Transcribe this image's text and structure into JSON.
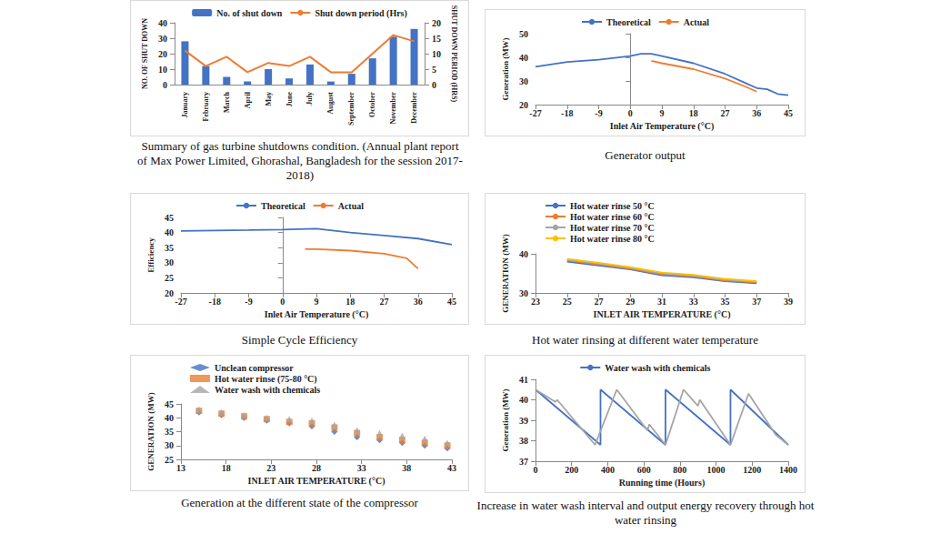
{
  "chart_data": [
    {
      "type": "bar",
      "caption": "Summary of gas turbine shutdowns condition. (Annual plant report of Max Power Limited, Ghorashal, Bangladesh for the session 2017-2018)",
      "categories": [
        "January",
        "February",
        "March",
        "April",
        "May",
        "June",
        "July",
        "August",
        "September",
        "October",
        "November",
        "December"
      ],
      "series": [
        {
          "name": "No. of shut down",
          "type": "bar",
          "color": "#4472c4",
          "values": [
            28,
            12,
            5,
            2,
            10,
            4,
            13,
            2,
            7,
            17,
            31,
            36
          ]
        },
        {
          "name": "Shut down period (Hrs)",
          "type": "line",
          "axis": "y2",
          "color": "#ed7d31",
          "values": [
            11,
            6,
            9,
            4,
            7,
            6,
            9,
            4,
            4,
            10,
            16,
            14
          ]
        }
      ],
      "y_label": "NO. OF SHUT DOWN",
      "y2_label": "SHUT DOWN PERIOD (HRS)",
      "ylim": [
        0,
        40
      ],
      "yticks": [
        0,
        10,
        20,
        30,
        40
      ],
      "y2lim": [
        0,
        20
      ],
      "y2ticks": [
        0,
        5,
        10,
        15,
        20
      ],
      "legend": "top",
      "grid": false
    },
    {
      "type": "line",
      "caption": "Generator output",
      "x_label": "Inlet Air Temperature (°C)",
      "y_label": "Generation (MW)",
      "series": [
        {
          "name": "Theoretical",
          "color": "#4472c4",
          "x": [
            -27,
            -18,
            -9,
            0,
            3,
            6,
            9,
            18,
            27,
            33,
            36,
            39,
            42,
            45
          ],
          "values": [
            36,
            38,
            39,
            40.5,
            41.5,
            41.5,
            40.5,
            37.5,
            33,
            29,
            27,
            26.5,
            24.5,
            24
          ]
        },
        {
          "name": "Actual",
          "color": "#ed7d31",
          "x": [
            6,
            9,
            18,
            27,
            33,
            36
          ],
          "values": [
            38.5,
            37.5,
            35,
            31,
            27.5,
            25.5
          ]
        }
      ],
      "xlim": [
        -27,
        45
      ],
      "xticks": [
        -27,
        -18,
        -9,
        0,
        9,
        18,
        27,
        36,
        45
      ],
      "ylim": [
        20,
        50
      ],
      "yticks": [
        20,
        30,
        40,
        50
      ],
      "legend": "top",
      "grid": false
    },
    {
      "type": "line",
      "caption": "Simple Cycle Efficiency",
      "x_label": "Inlet Air Temperature (°C)",
      "y_label": "Efficiency",
      "series": [
        {
          "name": "Theoretical",
          "color": "#4472c4",
          "x": [
            -27,
            -18,
            -9,
            0,
            9,
            18,
            27,
            36,
            45
          ],
          "values": [
            40.5,
            40.7,
            40.8,
            41,
            41.3,
            40,
            39,
            38,
            36
          ]
        },
        {
          "name": "Actual",
          "color": "#ed7d31",
          "x": [
            6,
            9,
            18,
            27,
            33,
            36
          ],
          "values": [
            34.5,
            34.5,
            34,
            33,
            31.5,
            28
          ]
        }
      ],
      "xlim": [
        -27,
        45
      ],
      "xticks": [
        -27,
        -18,
        -9,
        0,
        9,
        18,
        27,
        36,
        45
      ],
      "ylim": [
        20,
        45
      ],
      "yticks": [
        20,
        25,
        30,
        35,
        40,
        45
      ],
      "legend": "top",
      "grid": false
    },
    {
      "type": "line",
      "caption": "Hot water rinsing at different water temperature",
      "x_label": "INLET AIR TEMPERATURE (°C)",
      "y_label": "GENERATION (MW)",
      "series": [
        {
          "name": "Hot water rinse 50 °C",
          "color": "#4472c4",
          "x": [
            25,
            27,
            29,
            31,
            33,
            35,
            37
          ],
          "values": [
            38,
            37,
            36,
            34.5,
            34,
            33,
            32.5
          ]
        },
        {
          "name": "Hot water rinse 60 °C",
          "color": "#ed7d31",
          "x": [
            25,
            27,
            29,
            31,
            33,
            35,
            37
          ],
          "values": [
            38.3,
            37.3,
            36.2,
            34.8,
            34.2,
            33.2,
            32.7
          ]
        },
        {
          "name": "Hot water rinse 70 °C",
          "color": "#a5a5a5",
          "x": [
            25,
            27,
            29,
            31,
            33,
            35,
            37
          ],
          "values": [
            38.5,
            37.5,
            36.4,
            35,
            34.4,
            33.4,
            32.9
          ]
        },
        {
          "name": "Hot water rinse 80 °C",
          "color": "#ffc000",
          "x": [
            25,
            27,
            29,
            31,
            33,
            35,
            37
          ],
          "values": [
            38.7,
            37.7,
            36.6,
            35.2,
            34.6,
            33.6,
            33
          ]
        }
      ],
      "xlim": [
        23,
        39
      ],
      "xticks": [
        23,
        25,
        27,
        29,
        31,
        33,
        35,
        37,
        39
      ],
      "ylim": [
        30,
        40
      ],
      "yticks": [
        30,
        40
      ],
      "legend": "top-left",
      "grid": false
    },
    {
      "type": "scatter",
      "caption": "Generation at the different state of the compressor",
      "x_label": "INLET AIR TEMPERATURE (°C)",
      "y_label": "GENERATION (MW)",
      "series": [
        {
          "name": "Unclean compressor",
          "color": "#4472c4",
          "marker": "diamond",
          "x": [
            15,
            17.5,
            20,
            22.5,
            25,
            27.5,
            30,
            32.5,
            35,
            37.5,
            40,
            42.5
          ],
          "values": [
            42,
            41,
            40,
            39,
            38,
            37,
            35,
            33,
            32,
            31,
            30,
            29
          ]
        },
        {
          "name": "Hot water rinse (75-80 °C)",
          "color": "#ed7d31",
          "marker": "square",
          "x": [
            15,
            17.5,
            20,
            22.5,
            25,
            27.5,
            30,
            32.5,
            35,
            37.5,
            40,
            42.5
          ],
          "values": [
            42.5,
            41.5,
            40.5,
            39.5,
            38.5,
            38,
            36.5,
            34.5,
            33,
            32,
            31,
            30
          ]
        },
        {
          "name": "Water wash with chemicals",
          "color": "#a5a5a5",
          "marker": "triangle",
          "x": [
            15,
            17.5,
            20,
            22.5,
            25,
            27.5,
            30,
            32.5,
            35,
            37.5,
            40,
            42.5
          ],
          "values": [
            43,
            42,
            41,
            40,
            39.5,
            39,
            37.5,
            35.5,
            34.5,
            33.5,
            32.5,
            31
          ]
        }
      ],
      "xlim": [
        13,
        43
      ],
      "xticks": [
        13,
        18,
        23,
        28,
        33,
        38,
        43
      ],
      "ylim": [
        25,
        45
      ],
      "yticks": [
        25,
        30,
        35,
        40,
        45
      ],
      "legend": "top-left",
      "grid": false
    },
    {
      "type": "line",
      "caption": "Increase in water wash interval and output energy recovery through hot water rinsing",
      "x_label": "Running time (Hours)",
      "y_label": "Generation (MW)",
      "series": [
        {
          "name": "Water wash with chemicals",
          "color": "#4472c4",
          "x": [
            0,
            360,
            360,
            720,
            720,
            1080,
            1080,
            1400
          ],
          "values": [
            40.5,
            37.8,
            40.5,
            37.8,
            40.5,
            37.8,
            40.5,
            37.8
          ]
        },
        {
          "color": "#a5a5a5",
          "x": [
            0,
            110,
            120,
            330,
            450,
            620,
            630,
            720,
            820,
            900,
            910,
            1080,
            1180,
            1330,
            1400
          ],
          "values": [
            40.5,
            39.9,
            40,
            37.8,
            40.5,
            38.5,
            38.8,
            37.8,
            40.5,
            39.7,
            40,
            37.8,
            40.3,
            38.3,
            37.8
          ]
        }
      ],
      "xlim": [
        0,
        1400
      ],
      "xticks": [
        0,
        200,
        400,
        600,
        800,
        1000,
        1200,
        1400
      ],
      "ylim": [
        37,
        41
      ],
      "yticks": [
        37,
        38,
        39,
        40,
        41
      ],
      "legend": "top",
      "grid": false
    }
  ]
}
